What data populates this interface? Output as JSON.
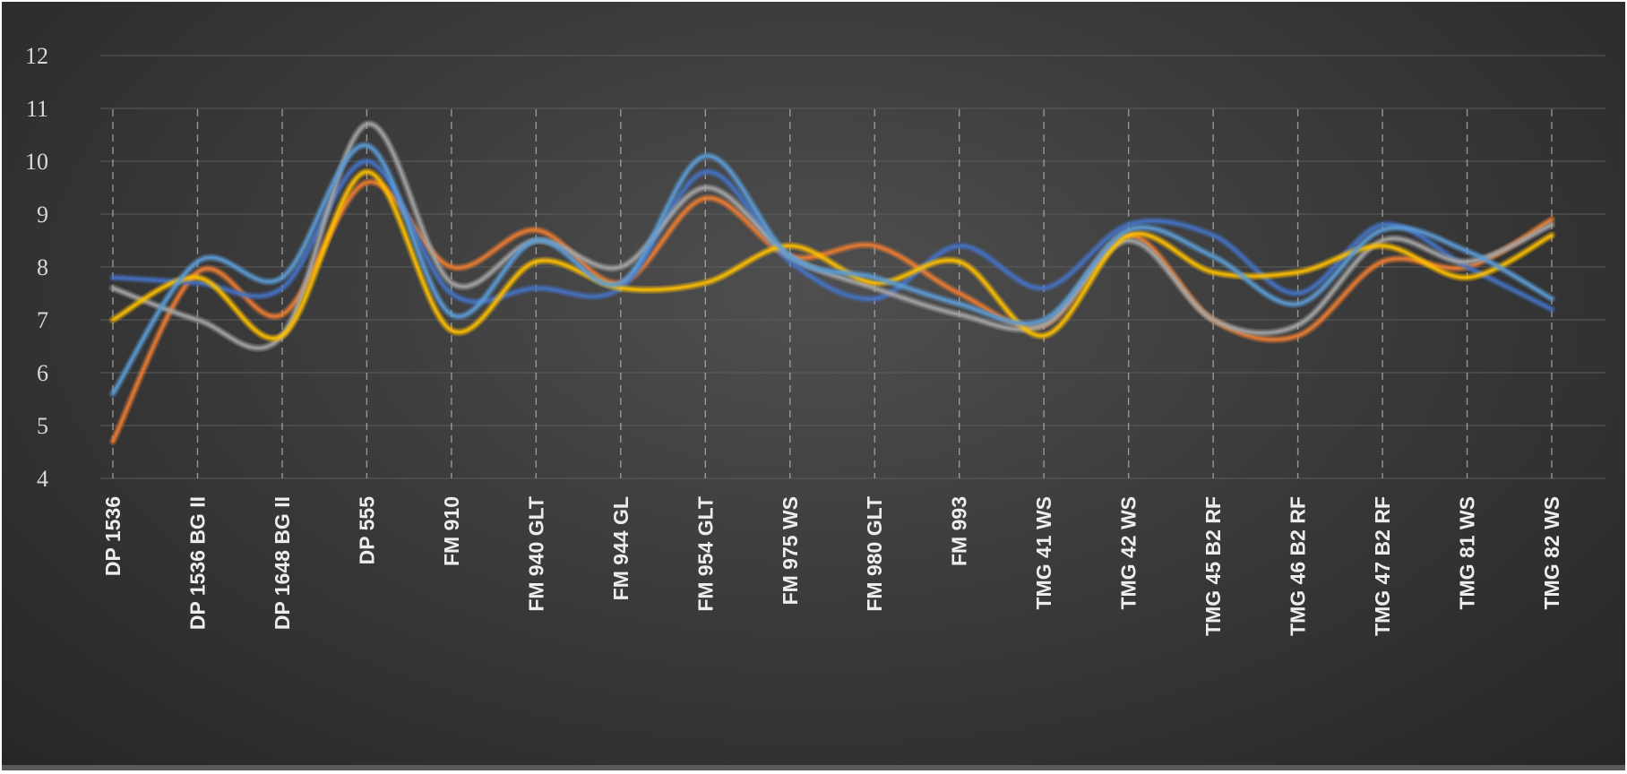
{
  "chart_data": {
    "type": "line",
    "title": "",
    "xlabel": "",
    "ylabel": "",
    "ylim": [
      4,
      12
    ],
    "yticks": [
      4,
      5,
      6,
      7,
      8,
      9,
      10,
      11,
      12
    ],
    "grid": true,
    "smooth": true,
    "legend": "none",
    "categories": [
      "DP 1536",
      "DP 1536 BG II",
      "DP 1648 BG II",
      "DP 555",
      "FM 910",
      "FM 940 GLT",
      "FM 944 GL",
      "FM 954 GLT",
      "FM 975 WS",
      "FM 980 GLT",
      "FM 993",
      "TMG 41 WS",
      "TMG 42 WS",
      "TMG 45 B2 RF",
      "TMG 46 B2 RF",
      "TMG 47 B2 RF",
      "TMG 81 WS",
      "TMG 82 WS"
    ],
    "series": [
      {
        "color": "#ed7d31",
        "values": [
          4.7,
          7.9,
          7.1,
          9.6,
          8.0,
          8.7,
          7.7,
          9.3,
          8.2,
          8.4,
          7.5,
          6.9,
          8.6,
          7.0,
          6.7,
          8.1,
          8.0,
          8.9
        ]
      },
      {
        "color": "#4472c4",
        "values": [
          7.8,
          7.7,
          7.6,
          10.0,
          7.5,
          7.6,
          7.6,
          9.8,
          8.1,
          7.4,
          8.4,
          7.6,
          8.8,
          8.6,
          7.5,
          8.8,
          8.0,
          7.2
        ]
      },
      {
        "color": "#a5a5a5",
        "values": [
          7.6,
          7.0,
          6.7,
          10.7,
          7.7,
          8.5,
          8.0,
          9.5,
          8.2,
          7.6,
          7.1,
          6.9,
          8.5,
          7.0,
          6.9,
          8.5,
          8.1,
          8.8
        ]
      },
      {
        "color": "#ffc000",
        "values": [
          7.0,
          7.8,
          6.7,
          9.8,
          6.8,
          8.1,
          7.6,
          7.7,
          8.4,
          7.7,
          8.1,
          6.7,
          8.6,
          7.9,
          7.9,
          8.4,
          7.8,
          8.6
        ]
      },
      {
        "color": "#5b9bd5",
        "values": [
          5.6,
          8.1,
          7.8,
          10.3,
          7.1,
          8.5,
          7.7,
          10.1,
          8.2,
          7.8,
          7.3,
          7.0,
          8.7,
          8.2,
          7.3,
          8.7,
          8.3,
          7.4
        ]
      }
    ]
  }
}
